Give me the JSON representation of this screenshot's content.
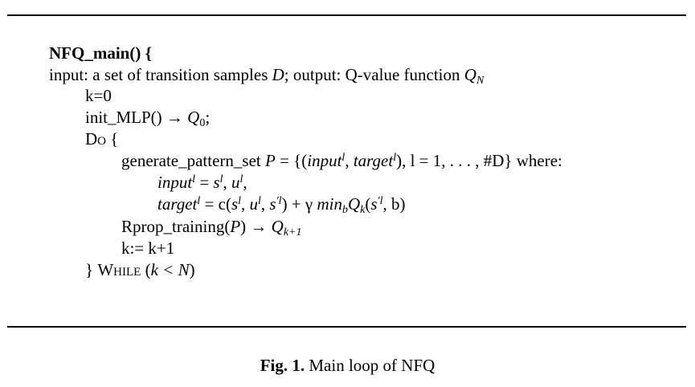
{
  "algorithm": {
    "header": "NFQ_main() {",
    "io": {
      "input_label": "input: a set of transition samples ",
      "input_var": "D",
      "output_label": "; output: Q-value function ",
      "q_var": "Q",
      "q_sub": "N"
    },
    "k_init": "k=0",
    "init_mlp": {
      "call": "init_MLP() → ",
      "q_var": "Q",
      "q_sub": "0",
      "end": ";"
    },
    "do_open": {
      "keyword": "Do",
      "brace": " {"
    },
    "generate": {
      "call": "generate_pattern_set ",
      "set_var": "P",
      "equals_open": " = {(",
      "input_var": "input",
      "sup_l": "l",
      "comma1": ", ",
      "target_var": "target",
      "sup_l2": "l",
      "rest": "), l = 1, . . . , #D} where:"
    },
    "input_def": {
      "var": "input",
      "sup": "l",
      "eq": " = ",
      "s": "s",
      "s_sup": "l",
      "comma": ", ",
      "u": "u",
      "u_sup": "l",
      "end": ","
    },
    "target_def": {
      "var": "target",
      "sup": "l",
      "eq": " = c(",
      "s": "s",
      "s_sup": "l",
      "comma1": ", ",
      "u": "u",
      "u_sup": "l",
      "comma2": ", ",
      "s2": "s",
      "s2_sup": "′l",
      "plus": ") + γ ",
      "min": "min",
      "min_sub": "b",
      "q": "Q",
      "q_sub": "k",
      "args_open": "(",
      "s3": "s",
      "s3_sup": "′l",
      "args_close": ", b)"
    },
    "rprop": {
      "call": "Rprop_training(",
      "p_var": "P",
      "arrow": ") → ",
      "q_var": "Q",
      "q_sub": "k+1"
    },
    "k_update": "k:= k+1",
    "while_close": {
      "brace": "} ",
      "keyword": "While",
      "cond_open": " (",
      "cond": "k < N",
      "cond_close": ")"
    }
  },
  "caption": {
    "label": "Fig. 1.",
    "text": " Main loop of NFQ"
  }
}
